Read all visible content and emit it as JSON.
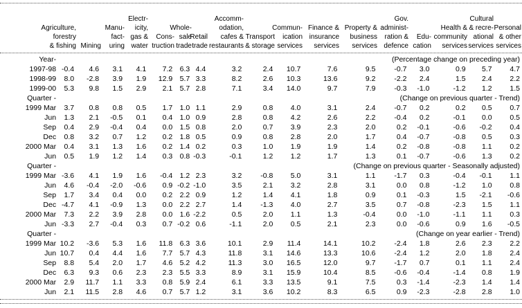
{
  "table": {
    "column_headings": [
      "Agriculture,\nforestry\n& fishing",
      "Mining",
      "Manu-\nfact-\nuring",
      "Electr-\nicity,\ngas &\nwater",
      "Cons-\ntruction",
      "Whole-\nsale\ntrade",
      "Retail\ntrade",
      "Accomm-\nodation,\ncafes &\nrestaurants",
      "Transport\n& storage",
      "Commun-\nication\nservices",
      "Finance &\ninsurance\nservices",
      "Property &\nbusiness\nservices",
      "Gov.\nadminist-\nration &\ndefence",
      "Edu-\ncation",
      "Health &\ncommunity\nservices",
      "Cultural\n& recre-\national\nservices",
      "Personal\n& other\nservices"
    ],
    "sections": [
      {
        "period_label": "Year-",
        "caption": "(Percentage change on preceding year)",
        "rows": [
          {
            "label": "1997-98",
            "values": [
              "-0.4",
              "4.6",
              "3.1",
              "4.1",
              "7.2",
              "6.3",
              "4.4",
              "3.2",
              "2.4",
              "10.7",
              "7.6",
              "9.5",
              "-0.7",
              "3.0",
              "0.9",
              "5.7",
              "4.7"
            ]
          },
          {
            "label": "1998-99",
            "values": [
              "8.0",
              "-2.8",
              "3.9",
              "1.9",
              "12.9",
              "5.7",
              "3.3",
              "8.2",
              "2.6",
              "10.3",
              "13.6",
              "9.2",
              "-2.2",
              "2.4",
              "1.5",
              "2.4",
              "2.2"
            ]
          },
          {
            "label": "1999-00",
            "values": [
              "5.3",
              "9.8",
              "1.5",
              "2.9",
              "2.1",
              "5.7",
              "2.8",
              "7.1",
              "3.4",
              "14.0",
              "9.7",
              "7.9",
              "-0.3",
              "-1.0",
              "-1.2",
              "1.2",
              "1.5"
            ]
          }
        ]
      },
      {
        "period_label": "Quarter -",
        "caption": "(Change on previous quarter - Trend)",
        "rows": [
          {
            "label": "1999 Mar",
            "values": [
              "3.7",
              "0.8",
              "0.8",
              "0.5",
              "1.7",
              "1.0",
              "1.1",
              "2.9",
              "0.8",
              "4.0",
              "3.1",
              "2.4",
              "-0.7",
              "0.2",
              "0.2",
              "0.5",
              "0.7"
            ]
          },
          {
            "label": "Jun",
            "values": [
              "1.3",
              "2.1",
              "-0.5",
              "0.1",
              "0.4",
              "1.0",
              "0.9",
              "2.8",
              "0.8",
              "4.2",
              "2.6",
              "2.2",
              "-0.4",
              "0.2",
              "-0.1",
              "0.0",
              "0.5"
            ]
          },
          {
            "label": "Sep",
            "values": [
              "0.4",
              "2.9",
              "-0.4",
              "0.4",
              "0.0",
              "1.5",
              "0.8",
              "2.0",
              "0.7",
              "3.9",
              "2.3",
              "2.0",
              "0.2",
              "-0.1",
              "-0.6",
              "-0.2",
              "0.4"
            ]
          },
          {
            "label": "Dec",
            "values": [
              "0.8",
              "3.2",
              "0.7",
              "1.2",
              "0.2",
              "1.8",
              "0.5",
              "0.9",
              "0.8",
              "2.8",
              "2.0",
              "1.7",
              "0.4",
              "-0.7",
              "-0.8",
              "0.5",
              "0.3"
            ]
          },
          {
            "label": "2000 Mar",
            "values": [
              "0.4",
              "3.1",
              "1.3",
              "1.6",
              "0.2",
              "1.4",
              "0.2",
              "0.3",
              "1.0",
              "1.9",
              "1.9",
              "1.4",
              "0.2",
              "-0.8",
              "-0.8",
              "1.1",
              "0.2"
            ]
          },
          {
            "label": "Jun",
            "values": [
              "0.5",
              "1.9",
              "1.2",
              "1.4",
              "0.3",
              "0.8",
              "-0.3",
              "-0.1",
              "1.2",
              "1.2",
              "1.7",
              "1.3",
              "0.1",
              "-0.7",
              "-0.6",
              "1.3",
              "0.2"
            ]
          }
        ]
      },
      {
        "period_label": "Quarter -",
        "caption": "(Change on previous quarter - Seasonally adjusted)",
        "rows": [
          {
            "label": "1999 Mar",
            "values": [
              "-3.6",
              "4.1",
              "1.9",
              "1.6",
              "-0.4",
              "1.2",
              "2.3",
              "3.2",
              "-0.8",
              "5.0",
              "3.1",
              "1.1",
              "-1.7",
              "0.3",
              "-0.4",
              "-0.1",
              "1.1"
            ]
          },
          {
            "label": "Jun",
            "values": [
              "4.6",
              "-0.4",
              "-2.0",
              "-0.6",
              "0.9",
              "-0.2",
              "-1.0",
              "3.5",
              "2.1",
              "3.2",
              "2.8",
              "3.1",
              "0.0",
              "0.8",
              "-1.2",
              "1.0",
              "0.8"
            ]
          },
          {
            "label": "Sep",
            "values": [
              "1.7",
              "3.4",
              "0.4",
              "0.0",
              "0.2",
              "2.2",
              "0.9",
              "1.2",
              "1.4",
              "4.1",
              "1.8",
              "0.9",
              "0.1",
              "-0.3",
              "1.5",
              "-2.1",
              "-0.6"
            ]
          },
          {
            "label": "Dec",
            "values": [
              "-4.7",
              "4.1",
              "-0.9",
              "1.3",
              "0.0",
              "2.2",
              "2.7",
              "1.4",
              "-1.3",
              "4.0",
              "2.7",
              "3.5",
              "0.7",
              "-0.8",
              "-2.3",
              "1.5",
              "1.1"
            ]
          },
          {
            "label": "2000 Mar",
            "values": [
              "7.3",
              "2.2",
              "3.9",
              "2.8",
              "0.0",
              "1.6",
              "-2.2",
              "0.5",
              "2.0",
              "1.1",
              "1.3",
              "-0.4",
              "0.0",
              "-1.0",
              "-1.1",
              "1.1",
              "0.3"
            ]
          },
          {
            "label": "Jun",
            "values": [
              "-3.3",
              "2.7",
              "-0.4",
              "0.3",
              "0.7",
              "-0.2",
              "0.6",
              "-1.1",
              "2.0",
              "0.5",
              "2.1",
              "2.3",
              "0.0",
              "-0.6",
              "0.9",
              "1.6",
              "-0.5"
            ]
          }
        ]
      },
      {
        "period_label": "Quarter -",
        "caption": "(Change on year earlier - Trend)",
        "rows": [
          {
            "label": "1999 Mar",
            "values": [
              "10.2",
              "-3.6",
              "5.3",
              "1.6",
              "11.8",
              "6.3",
              "3.6",
              "10.1",
              "2.9",
              "11.4",
              "14.1",
              "10.2",
              "-2.4",
              "1.8",
              "2.6",
              "2.3",
              "2.2"
            ]
          },
          {
            "label": "Jun",
            "values": [
              "10.7",
              "0.4",
              "4.4",
              "1.6",
              "7.7",
              "5.7",
              "4.3",
              "11.8",
              "3.1",
              "14.6",
              "13.3",
              "10.6",
              "-2.4",
              "1.2",
              "2.0",
              "1.8",
              "2.4"
            ]
          },
          {
            "label": "Sep",
            "values": [
              "8.8",
              "5.4",
              "2.0",
              "1.7",
              "4.6",
              "5.2",
              "4.2",
              "11.3",
              "3.0",
              "16.5",
              "12.0",
              "9.7",
              "-1.7",
              "0.7",
              "0.1",
              "1.1",
              "2.4"
            ]
          },
          {
            "label": "Dec",
            "values": [
              "6.3",
              "9.3",
              "0.6",
              "2.3",
              "2.3",
              "5.5",
              "3.3",
              "8.9",
              "3.1",
              "15.9",
              "10.4",
              "8.5",
              "-0.6",
              "-0.4",
              "-1.4",
              "0.8",
              "1.9"
            ]
          },
          {
            "label": "2000 Mar",
            "values": [
              "2.9",
              "11.7",
              "1.1",
              "3.3",
              "0.8",
              "5.9",
              "2.4",
              "6.1",
              "3.3",
              "13.5",
              "9.1",
              "7.5",
              "0.3",
              "-1.4",
              "-2.3",
              "1.4",
              "1.4"
            ]
          },
          {
            "label": "Jun",
            "values": [
              "2.1",
              "11.5",
              "2.8",
              "4.6",
              "0.7",
              "5.7",
              "1.2",
              "3.1",
              "3.6",
              "10.2",
              "8.3",
              "6.5",
              "0.9",
              "-2.3",
              "-2.8",
              "2.8",
              "1.0"
            ]
          }
        ]
      }
    ]
  }
}
